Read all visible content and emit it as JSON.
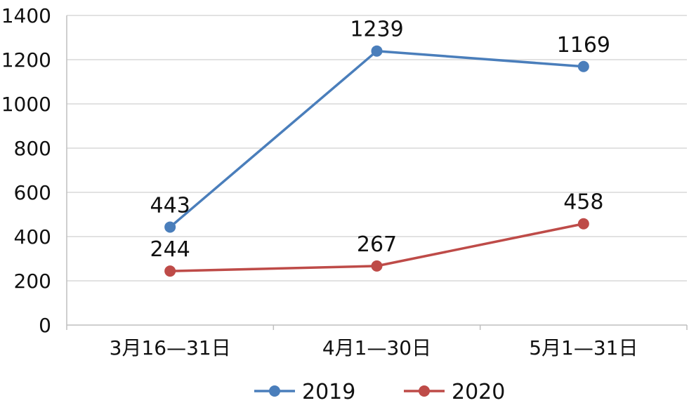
{
  "chart_data": {
    "type": "line",
    "title": "",
    "xlabel": "",
    "ylabel": "",
    "categories": [
      "3月16—31日",
      "4月1—30日",
      "5月1—31日"
    ],
    "ylim": [
      0,
      1400
    ],
    "yticks": [
      0,
      200,
      400,
      600,
      800,
      1000,
      1200,
      1400
    ],
    "grid": true,
    "legend_position": "bottom",
    "series": [
      {
        "name": "2019",
        "color": "#4a7ebb",
        "values": [
          443,
          1239,
          1169
        ]
      },
      {
        "name": "2020",
        "color": "#be4b48",
        "values": [
          244,
          267,
          458
        ]
      }
    ]
  }
}
